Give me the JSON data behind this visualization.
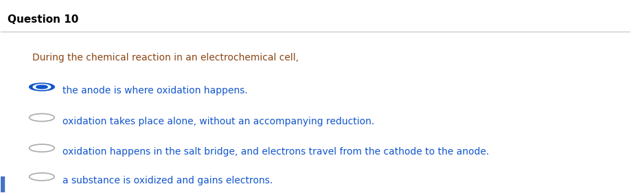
{
  "title": "Question 10",
  "title_fontsize": 11,
  "title_bold": true,
  "question_text": "During the chemical reaction in an electrochemical cell,",
  "question_color": "#8B4513",
  "question_fontsize": 10,
  "options": [
    "the anode is where oxidation happens.",
    "oxidation takes place alone, without an accompanying reduction.",
    "oxidation happens in the salt bridge, and electrons travel from the cathode to the anode.",
    "a substance is oxidized and gains electrons."
  ],
  "option_color": "#1155CC",
  "option_fontsize": 10,
  "selected_index": 0,
  "background_color": "#ffffff",
  "radio_selected_outer": "#1155CC",
  "radio_selected_inner": "#1155CC",
  "radio_unselected_color": "#aaaaaa",
  "separator_color": "#CCCCCC",
  "title_color": "#000000",
  "left_bar_color": "#4472C4"
}
